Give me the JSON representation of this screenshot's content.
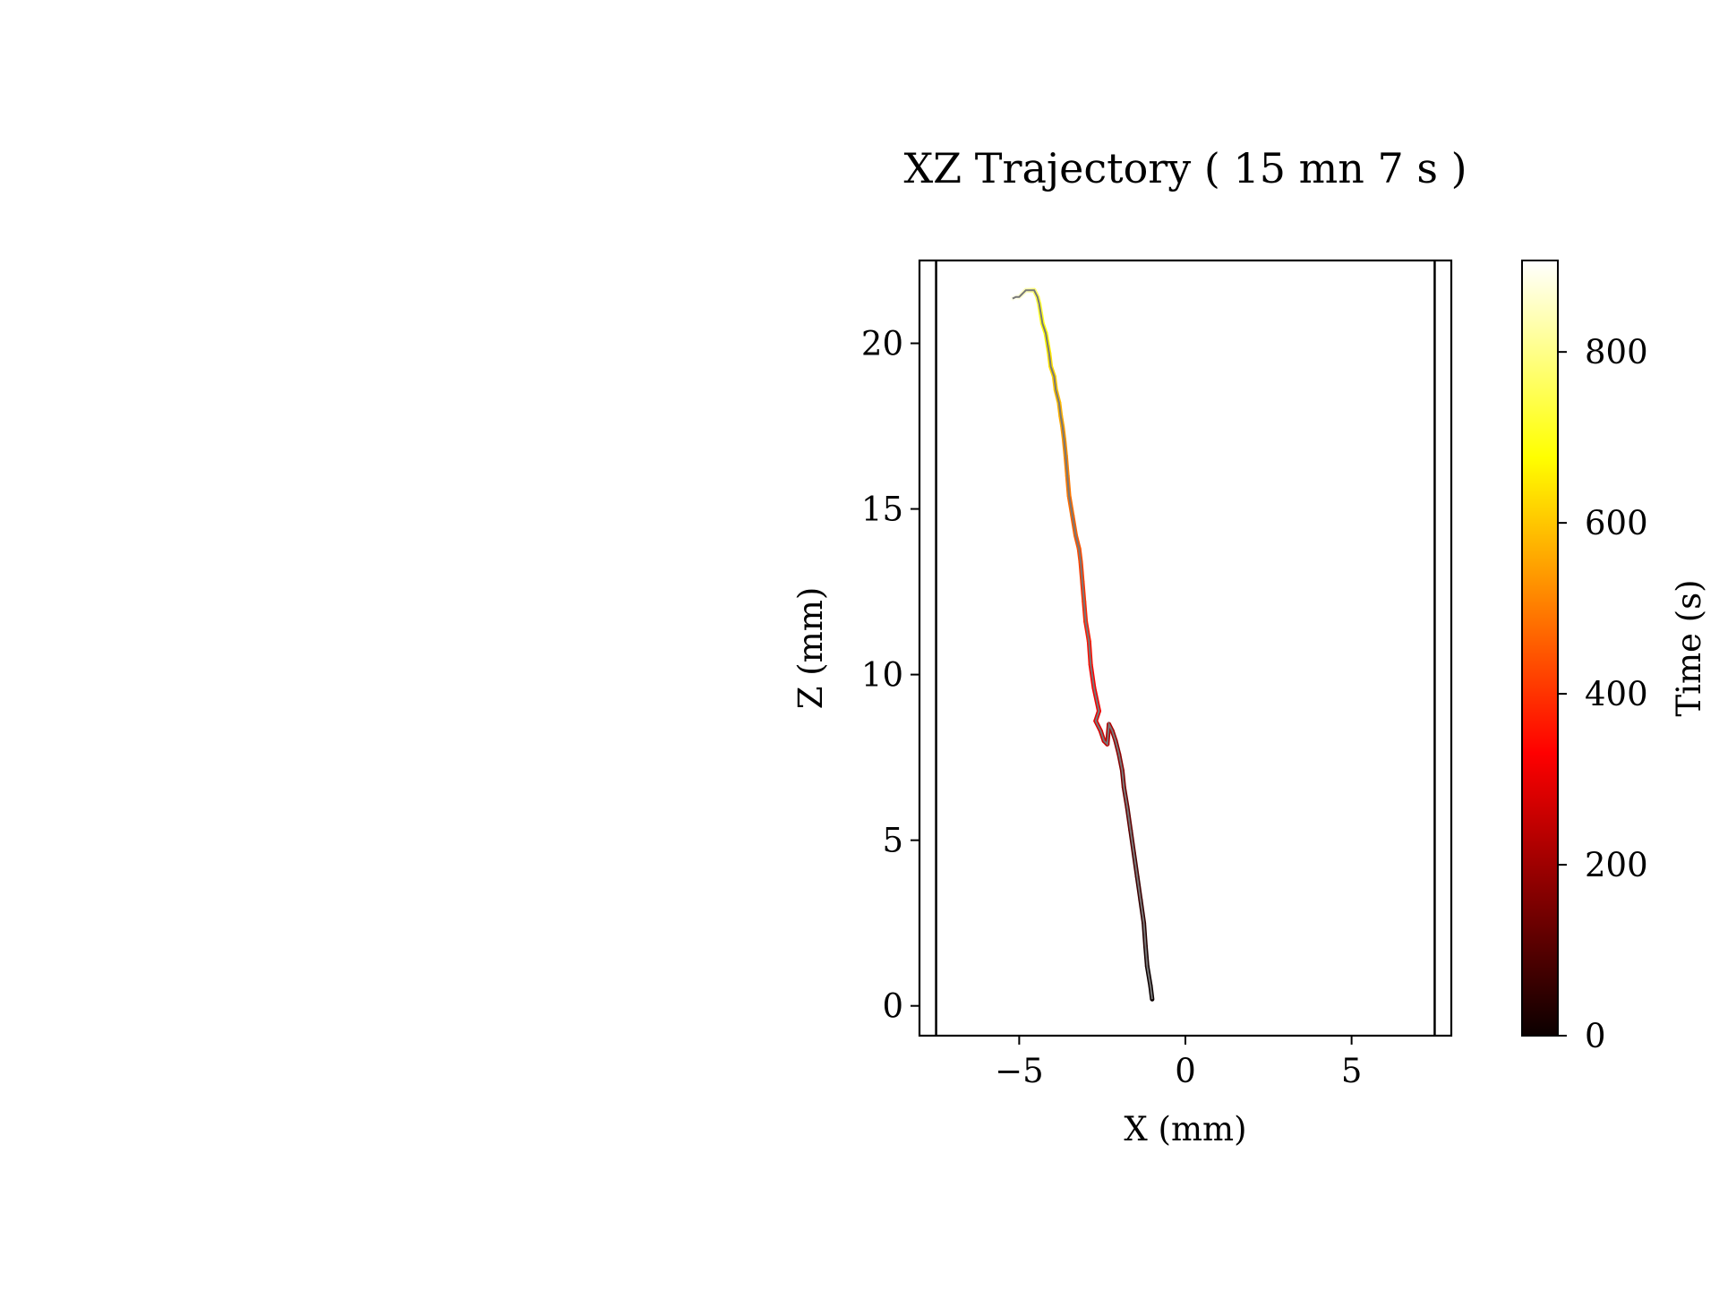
{
  "chart_data": {
    "type": "line",
    "title": "XZ Trajectory ( 15 mn 7 s )",
    "xlabel": "X (mm)",
    "ylabel": "Z (mm)",
    "xlim": [
      -8,
      8
    ],
    "ylim": [
      -0.9,
      22.5
    ],
    "xticks": [
      -5,
      0,
      5
    ],
    "xtick_labels": [
      "−5",
      "0",
      "5"
    ],
    "yticks": [
      0,
      5,
      10,
      15,
      20
    ],
    "ytick_labels": [
      "0",
      "5",
      "10",
      "15",
      "20"
    ],
    "vertical_lines_x": [
      -7.5,
      7.5
    ],
    "grid": false,
    "series": [
      {
        "color_by": "time",
        "x": [
          -1.0,
          -1.05,
          -1.15,
          -1.2,
          -1.25,
          -1.35,
          -1.45,
          -1.55,
          -1.65,
          -1.75,
          -1.85,
          -1.9,
          -2.0,
          -2.1,
          -2.2,
          -2.3,
          -2.35,
          -2.45,
          -2.55,
          -2.7,
          -2.6,
          -2.75,
          -2.85,
          -2.9,
          -3.0,
          -3.05,
          -3.1,
          -3.15,
          -3.2,
          -3.3,
          -3.4,
          -3.5,
          -3.55,
          -3.6,
          -3.65,
          -3.7,
          -3.75,
          -3.8,
          -3.9,
          -3.95,
          -4.05,
          -4.1,
          -4.15,
          -4.2,
          -4.3,
          -4.35,
          -4.4,
          -4.45,
          -4.5,
          -4.55,
          -4.6,
          -4.65,
          -4.7,
          -4.8,
          -4.9,
          -5.0,
          -5.1,
          -5.2
        ],
        "y": [
          0.2,
          0.6,
          1.2,
          1.8,
          2.5,
          3.2,
          3.9,
          4.6,
          5.3,
          6.0,
          6.6,
          7.1,
          7.6,
          8.0,
          8.3,
          8.5,
          7.9,
          8.0,
          8.3,
          8.6,
          8.9,
          9.6,
          10.3,
          11.0,
          11.6,
          12.2,
          12.8,
          13.4,
          13.8,
          14.2,
          14.8,
          15.4,
          16.0,
          16.6,
          17.1,
          17.5,
          17.8,
          18.2,
          18.6,
          19.0,
          19.3,
          19.7,
          20.0,
          20.3,
          20.6,
          20.9,
          21.2,
          21.4,
          21.5,
          21.6,
          21.6,
          21.6,
          21.6,
          21.6,
          21.5,
          21.4,
          21.4,
          21.35
        ],
        "t_start": 0,
        "t_end": 907
      }
    ],
    "colorbar": {
      "label": "Time (s)",
      "colormap": "hot",
      "range": [
        0,
        907
      ],
      "ticks": [
        0,
        200,
        400,
        600,
        800
      ],
      "tick_labels": [
        "0",
        "200",
        "400",
        "600",
        "800"
      ]
    },
    "legend": "none"
  }
}
